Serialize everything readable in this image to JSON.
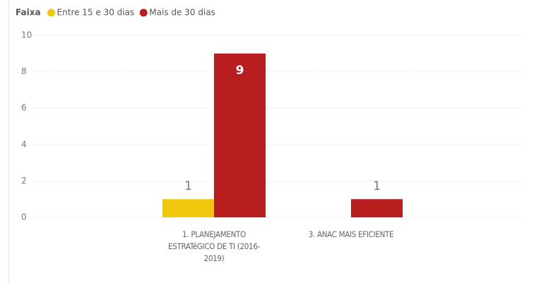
{
  "chart_data": {
    "type": "bar",
    "legend_title": "Faixa",
    "categories": [
      "1. PLANEJAMENTO ESTRATéGICO DE TI (2016-2019)",
      "3. ANAC MAIS EFICIENTE"
    ],
    "series": [
      {
        "name": "Entre 15 e 30 dias",
        "color": "#F2C80F",
        "values": [
          1,
          null
        ]
      },
      {
        "name": "Mais de 30 dias",
        "color": "#B81E1E",
        "values": [
          9,
          1
        ]
      }
    ],
    "ylim": [
      0,
      10
    ],
    "yticks": [
      0,
      2,
      4,
      6,
      8,
      10
    ],
    "grid": true,
    "legend": "top-left"
  }
}
